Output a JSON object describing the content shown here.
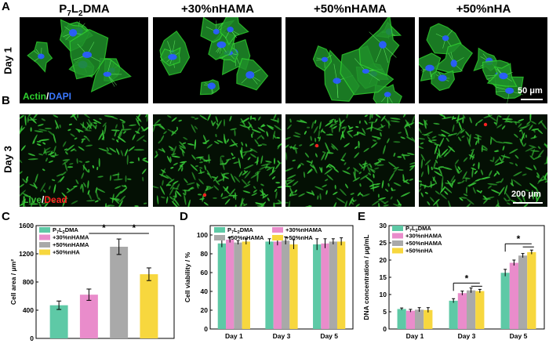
{
  "panel_labels": {
    "a": "A",
    "b": "B",
    "c": "C",
    "d": "D",
    "e": "E"
  },
  "columns": [
    {
      "pre": "P",
      "sub1": "7",
      "mid": "L",
      "sub2": "2",
      "post": "DMA"
    },
    {
      "text": "+30%nHAMA"
    },
    {
      "text": "+50%nHAMA"
    },
    {
      "text": "+50%nHA"
    }
  ],
  "rows": {
    "day1": "Day 1",
    "day3": "Day 3"
  },
  "captions": {
    "actin": "Actin",
    "slash1": "/",
    "dapi": "DAPI",
    "live": "Live",
    "slash2": "/",
    "dead": "Dead"
  },
  "scalebars": {
    "top": "50 μm",
    "bottom": "200 μm"
  },
  "colors": {
    "actin": "#2fd12f",
    "dapi": "#2a5cff",
    "live": "#36c236",
    "dead": "#ff2020",
    "s1": "#5ec9a6",
    "s2": "#e98ccb",
    "s3": "#a9a9a9",
    "s4": "#f7d73e"
  },
  "legend": [
    {
      "pre": "P",
      "sub1": "7",
      "mid": "L",
      "sub2": "2",
      "post": "DMA"
    },
    {
      "text": "+30%nHAMA"
    },
    {
      "text": "+50%nHAMA"
    },
    {
      "text": "+50%nHA"
    }
  ],
  "chart_data": [
    {
      "type": "bar",
      "panel": "C",
      "ylabel": "Cell area / μm²",
      "ylim": [
        0,
        1600
      ],
      "yticks": [
        0,
        400,
        800,
        1200,
        1600
      ],
      "categories": [
        "P7L2DMA",
        "+30%nHAMA",
        "+50%nHAMA",
        "+50%nHA"
      ],
      "values": [
        470,
        620,
        1300,
        910
      ],
      "errors": [
        60,
        80,
        110,
        90
      ],
      "significance": [
        "*",
        "*"
      ]
    },
    {
      "type": "bar",
      "panel": "D",
      "ylabel": "Cell viability / %",
      "ylim": [
        0,
        110
      ],
      "yticks": [
        0,
        20,
        40,
        60,
        80,
        100
      ],
      "categories": [
        "Day 1",
        "Day 3",
        "Day 5"
      ],
      "series": [
        {
          "values": [
            91,
            93,
            90
          ],
          "errors": [
            4,
            3,
            6
          ]
        },
        {
          "values": [
            95,
            93,
            91
          ],
          "errors": [
            3,
            4,
            5
          ]
        },
        {
          "values": [
            92,
            94,
            93
          ],
          "errors": [
            2,
            4,
            3
          ]
        },
        {
          "values": [
            93,
            90,
            93
          ],
          "errors": [
            3,
            5,
            4
          ]
        }
      ]
    },
    {
      "type": "bar",
      "panel": "E",
      "ylabel": "DNA concentration / μg/mL",
      "ylim": [
        0,
        30
      ],
      "yticks": [
        0,
        5,
        10,
        15,
        20,
        25,
        30
      ],
      "categories": [
        "Day 1",
        "Day 3",
        "Day 5"
      ],
      "series": [
        {
          "values": [
            5.8,
            8.2,
            16.3
          ],
          "errors": [
            0.3,
            0.6,
            1.0
          ]
        },
        {
          "values": [
            5.3,
            10.4,
            19.2
          ],
          "errors": [
            0.4,
            0.6,
            0.8
          ]
        },
        {
          "values": [
            5.6,
            11.2,
            21.3
          ],
          "errors": [
            0.6,
            0.7,
            0.6
          ]
        },
        {
          "values": [
            5.5,
            11.0,
            22.3
          ],
          "errors": [
            0.7,
            0.5,
            0.6
          ]
        }
      ],
      "significance": [
        "*",
        "*"
      ]
    }
  ]
}
